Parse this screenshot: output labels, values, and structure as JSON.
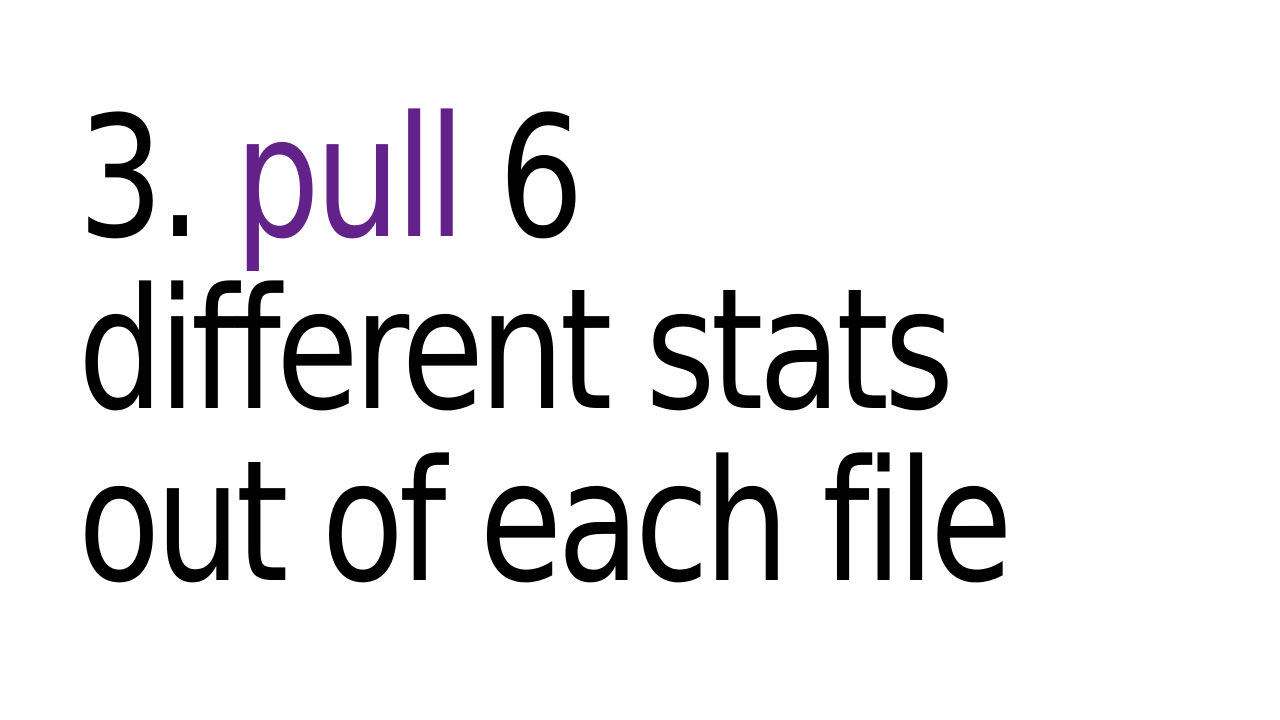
{
  "slide": {
    "lines": [
      {
        "number": "3.",
        "highlight": "pull",
        "rest": "6"
      },
      {
        "text": "different stats"
      },
      {
        "text": "out of each file"
      }
    ]
  },
  "colors": {
    "text": "#000000",
    "accent": "#63218a",
    "background": "#ffffff"
  }
}
